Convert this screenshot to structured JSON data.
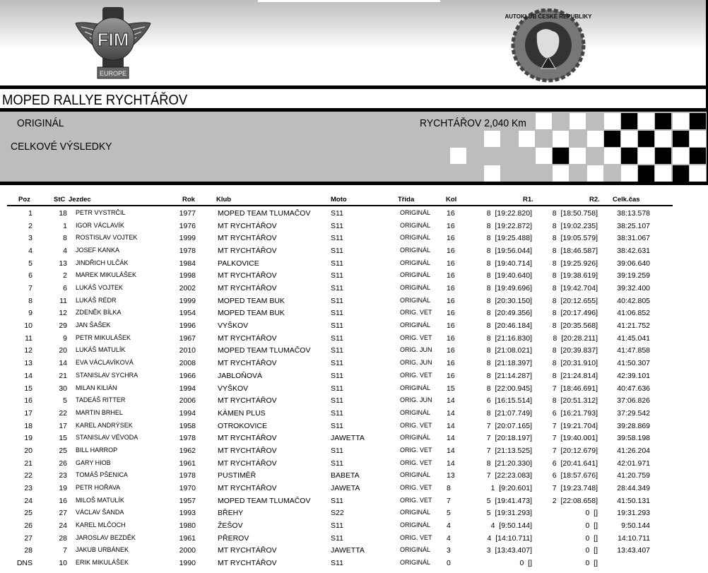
{
  "logos": {
    "left": "FIM EUROPE",
    "right": "AUTOKLUB ČESKÉ REPUBLIKY"
  },
  "event_title": "MOPED RALLYE RYCHTÁŘOV",
  "category": "ORIGINÁL",
  "report_type": "CELKOVÉ VÝSLEDKY",
  "track": "RYCHTÁŘOV 2,040 Km",
  "columns": {
    "poz": "Poz",
    "stc": "StC",
    "jezdec": "Jezdec",
    "rok": "Rok",
    "klub": "Klub",
    "moto": "Moto",
    "trida": "Třída",
    "kol": "Kol",
    "r1": "R1.",
    "r2": "R2.",
    "celk": "Celk.čas"
  },
  "results": [
    {
      "poz": "1",
      "stc": "18",
      "jezdec": "PETR VYSTRČIL",
      "rok": "1977",
      "klub": "MOPED TEAM TLUMAČOV",
      "moto": "S11",
      "trida": "ORIGINÁL",
      "kol": "16",
      "r1": "8  [19:22.820]",
      "r2": "8  [18:50.758]",
      "celk": "38:13.578"
    },
    {
      "poz": "2",
      "stc": "1",
      "jezdec": "IGOR VÁCLAVÍK",
      "rok": "1976",
      "klub": "MT RYCHTÁŘOV",
      "moto": "S11",
      "trida": "ORIGINÁL",
      "kol": "16",
      "r1": "8  [19:22.872]",
      "r2": "8  [19:02.235]",
      "celk": "38:25.107"
    },
    {
      "poz": "3",
      "stc": "8",
      "jezdec": "ROSTISLAV VOJTEK",
      "rok": "1999",
      "klub": "MT RYCHTÁŘOV",
      "moto": "S11",
      "trida": "ORIGINÁL",
      "kol": "16",
      "r1": "8  [19:25.488]",
      "r2": "8  [19:05.579]",
      "celk": "38:31.067"
    },
    {
      "poz": "4",
      "stc": "4",
      "jezdec": "JOSEF KANKA",
      "rok": "1978",
      "klub": "MT RYCHTÁŘOV",
      "moto": "S11",
      "trida": "ORIGINÁL",
      "kol": "16",
      "r1": "8  [19:56.044]",
      "r2": "8  [18:46.587]",
      "celk": "38:42.631"
    },
    {
      "poz": "5",
      "stc": "13",
      "jezdec": "JINDŘICH ULČÁK",
      "rok": "1984",
      "klub": "PALKOVICE",
      "moto": "S11",
      "trida": "ORIGINÁL",
      "kol": "16",
      "r1": "8  [19:40.714]",
      "r2": "8  [19:25.926]",
      "celk": "39:06.640"
    },
    {
      "poz": "6",
      "stc": "2",
      "jezdec": "MAREK MIKULÁŠEK",
      "rok": "1998",
      "klub": "MT RYCHTÁŘOV",
      "moto": "S11",
      "trida": "ORIGINÁL",
      "kol": "16",
      "r1": "8  [19:40.640]",
      "r2": "8  [19:38.619]",
      "celk": "39:19.259"
    },
    {
      "poz": "7",
      "stc": "6",
      "jezdec": "LUKÁŠ VOJTEK",
      "rok": "2002",
      "klub": "MT RYCHTÁŘOV",
      "moto": "S11",
      "trida": "ORIGINÁL",
      "kol": "16",
      "r1": "8  [19:49.696]",
      "r2": "8  [19:42.704]",
      "celk": "39:32.400"
    },
    {
      "poz": "8",
      "stc": "11",
      "jezdec": "LUKÁŠ RÉDR",
      "rok": "1999",
      "klub": "MOPED TEAM BUK",
      "moto": "S11",
      "trida": "ORIGINÁL",
      "kol": "16",
      "r1": "8  [20:30.150]",
      "r2": "8  [20:12.655]",
      "celk": "40:42.805"
    },
    {
      "poz": "9",
      "stc": "12",
      "jezdec": "ZDENĚK BÍLKA",
      "rok": "1954",
      "klub": "MOPED TEAM BUK",
      "moto": "S11",
      "trida": "ORIG. VET",
      "kol": "16",
      "r1": "8  [20:49.356]",
      "r2": "8  [20:17.496]",
      "celk": "41:06.852"
    },
    {
      "poz": "10",
      "stc": "29",
      "jezdec": "JAN ŠAŠEK",
      "rok": "1996",
      "klub": "VYŠKOV",
      "moto": "S11",
      "trida": "ORIGINÁL",
      "kol": "16",
      "r1": "8  [20:46.184]",
      "r2": "8  [20:35.568]",
      "celk": "41:21.752"
    },
    {
      "poz": "11",
      "stc": "9",
      "jezdec": "PETR MIKULÁŠEK",
      "rok": "1967",
      "klub": "MT RYCHTÁŘOV",
      "moto": "S11",
      "trida": "ORIG. VET",
      "kol": "16",
      "r1": "8  [21:16.830]",
      "r2": "8  [20:28.211]",
      "celk": "41:45.041"
    },
    {
      "poz": "12",
      "stc": "20",
      "jezdec": "LUKÁŠ MATULÍK",
      "rok": "2010",
      "klub": "MOPED TEAM TLUMAČOV",
      "moto": "S11",
      "trida": "ORIG. JUN",
      "kol": "16",
      "r1": "8  [21:08.021]",
      "r2": "8  [20:39.837]",
      "celk": "41:47.858"
    },
    {
      "poz": "13",
      "stc": "14",
      "jezdec": "EVA VÁCLAVÍKOVÁ",
      "rok": "2008",
      "klub": "MT RYCHTÁŘOV",
      "moto": "S11",
      "trida": "ORIG. JUN",
      "kol": "16",
      "r1": "8  [21:18.397]",
      "r2": "8  [20:31.910]",
      "celk": "41:50.307"
    },
    {
      "poz": "14",
      "stc": "21",
      "jezdec": "STANISLAV SYCHRA",
      "rok": "1966",
      "klub": "JABLOŇOVÁ",
      "moto": "S11",
      "trida": "ORIG. VET",
      "kol": "16",
      "r1": "8  [21:14.287]",
      "r2": "8  [21:24.814]",
      "celk": "42:39.101"
    },
    {
      "poz": "15",
      "stc": "30",
      "jezdec": "MILAN KILIÁN",
      "rok": "1994",
      "klub": "VYŠKOV",
      "moto": "S11",
      "trida": "ORIGINÁL",
      "kol": "15",
      "r1": "8  [22:00.945]",
      "r2": "7  [18:46.691]",
      "celk": "40:47.636"
    },
    {
      "poz": "16",
      "stc": "5",
      "jezdec": "TADEÁŠ RITTER",
      "rok": "2006",
      "klub": "MT RYCHTÁŘOV",
      "moto": "S11",
      "trida": "ORIG. JUN",
      "kol": "14",
      "r1": "6  [16:15.514]",
      "r2": "8  [20:51.312]",
      "celk": "37:06.826"
    },
    {
      "poz": "17",
      "stc": "22",
      "jezdec": "MARTIN BRHEL",
      "rok": "1994",
      "klub": "KÁMEN PLUS",
      "moto": "S11",
      "trida": "ORIGINÁL",
      "kol": "14",
      "r1": "8  [21:07.749]",
      "r2": "6  [16:21.793]",
      "celk": "37:29.542"
    },
    {
      "poz": "18",
      "stc": "17",
      "jezdec": "KAREL ANDRÝSEK",
      "rok": "1958",
      "klub": "OTROKOVICE",
      "moto": "S11",
      "trida": "ORIG. VET",
      "kol": "14",
      "r1": "7  [20:07.165]",
      "r2": "7  [19:21.704]",
      "celk": "39:28.869"
    },
    {
      "poz": "19",
      "stc": "15",
      "jezdec": "STANISLAV VÉVODA",
      "rok": "1978",
      "klub": "MT RYCHTÁŘOV",
      "moto": "JAWETTA",
      "trida": "ORIGINÁL",
      "kol": "14",
      "r1": "7  [20:18.197]",
      "r2": "7  [19:40.001]",
      "celk": "39:58.198"
    },
    {
      "poz": "20",
      "stc": "25",
      "jezdec": "BILL HARROP",
      "rok": "1962",
      "klub": "MT RYCHTÁŘOV",
      "moto": "S11",
      "trida": "ORIG. VET",
      "kol": "14",
      "r1": "7  [21:13.525]",
      "r2": "7  [20:12.679]",
      "celk": "41:26.204"
    },
    {
      "poz": "21",
      "stc": "26",
      "jezdec": "GARY HIOB",
      "rok": "1961",
      "klub": "MT RYCHTÁŘOV",
      "moto": "S11",
      "trida": "ORIG. VET",
      "kol": "14",
      "r1": "8  [21:20.330]",
      "r2": "6  [20:41.641]",
      "celk": "42:01.971"
    },
    {
      "poz": "22",
      "stc": "23",
      "jezdec": "TOMÁŠ PŠENICA",
      "rok": "1978",
      "klub": "PUSTIMĚŘ",
      "moto": "BABETA",
      "trida": "ORIGINÁL",
      "kol": "13",
      "r1": "7  [22:23.083]",
      "r2": "6  [18:57.676]",
      "celk": "41:20.759"
    },
    {
      "poz": "23",
      "stc": "19",
      "jezdec": "PETR HOŘAVA",
      "rok": "1970",
      "klub": "MT RYCHTÁŘOV",
      "moto": "JAWETA",
      "trida": "ORIG. VET",
      "kol": "8",
      "r1": "1  [9:20.601]",
      "r2": "7  [19:23.748]",
      "celk": "28:44.349"
    },
    {
      "poz": "24",
      "stc": "16",
      "jezdec": "MILOŠ MATULÍK",
      "rok": "1957",
      "klub": "MOPED TEAM TLUMAČOV",
      "moto": "S11",
      "trida": "ORIG. VET",
      "kol": "7",
      "r1": "5  [19:41.473]",
      "r2": "2  [22:08.658]",
      "celk": "41:50.131"
    },
    {
      "poz": "25",
      "stc": "27",
      "jezdec": "VÁCLAV ŠANDA",
      "rok": "1993",
      "klub": "BŘEHY",
      "moto": "S22",
      "trida": "ORIGINÁL",
      "kol": "5",
      "r1": "5  [19:31.293]",
      "r2": "0  []",
      "celk": "19:31.293"
    },
    {
      "poz": "26",
      "stc": "24",
      "jezdec": "KAREL MLČOCH",
      "rok": "1980",
      "klub": "ŽEŠOV",
      "moto": "S11",
      "trida": "ORIGINÁL",
      "kol": "4",
      "r1": "4  [9:50.144]",
      "r2": "0  []",
      "celk": "9:50.144"
    },
    {
      "poz": "27",
      "stc": "28",
      "jezdec": "JAROSLAV BEZDĚK",
      "rok": "1961",
      "klub": "PŘEROV",
      "moto": "S11",
      "trida": "ORIG. VET",
      "kol": "4",
      "r1": "4  [14:10.711]",
      "r2": "0  []",
      "celk": "14:10.711"
    },
    {
      "poz": "28",
      "stc": "7",
      "jezdec": "JAKUB URBÁNEK",
      "rok": "2000",
      "klub": "MT RYCHTÁŘOV",
      "moto": "JAWETTA",
      "trida": "ORIGINÁL",
      "kol": "3",
      "r1": "3  [13:43.407]",
      "r2": "0  []",
      "celk": "13:43.407"
    },
    {
      "poz": "DNS",
      "stc": "10",
      "jezdec": "ERIK MIKULÁŠEK",
      "rok": "1990",
      "klub": "MT RYCHTÁŘOV",
      "moto": "S11",
      "trida": "ORIGINÁL",
      "kol": "0",
      "r1": "0  []",
      "r2": "0  []",
      "celk": ""
    }
  ]
}
